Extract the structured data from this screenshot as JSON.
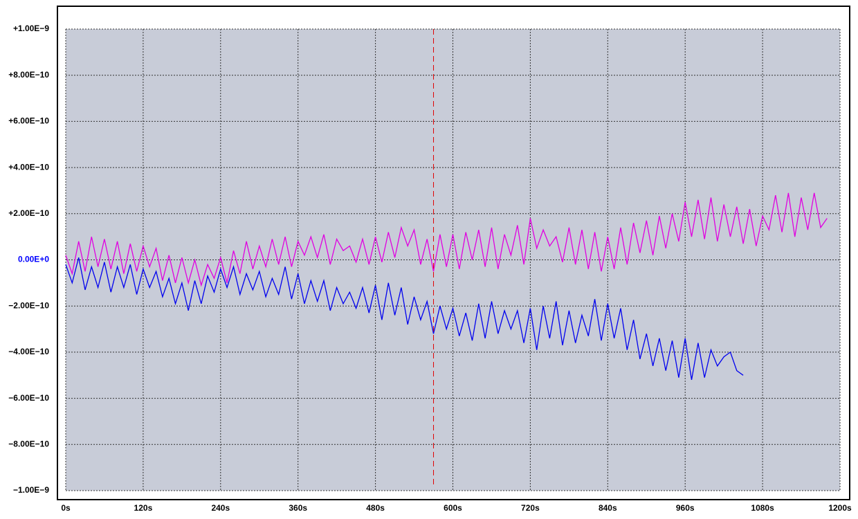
{
  "chart_data": {
    "type": "line",
    "xlim": [
      0,
      1200
    ],
    "xticks": [
      {
        "value": 0,
        "label": "0s"
      },
      {
        "value": 120,
        "label": "120s"
      },
      {
        "value": 240,
        "label": "240s"
      },
      {
        "value": 360,
        "label": "360s"
      },
      {
        "value": 480,
        "label": "480s"
      },
      {
        "value": 600,
        "label": "600s"
      },
      {
        "value": 720,
        "label": "720s"
      },
      {
        "value": 840,
        "label": "840s"
      },
      {
        "value": 960,
        "label": "960s"
      },
      {
        "value": 1080,
        "label": "1080s"
      },
      {
        "value": 1200,
        "label": "1200s"
      }
    ],
    "ylim": [
      -1e-09,
      1e-09
    ],
    "yticks": [
      {
        "value": 1e-09,
        "label": "+1.00E−9"
      },
      {
        "value": 8e-10,
        "label": "+8.00E−10"
      },
      {
        "value": 6e-10,
        "label": "+6.00E−10"
      },
      {
        "value": 4e-10,
        "label": "+4.00E−10"
      },
      {
        "value": 2e-10,
        "label": "+2.00E−10"
      },
      {
        "value": 0,
        "label": "0.00E+0"
      },
      {
        "value": -2e-10,
        "label": "−2.00E−10"
      },
      {
        "value": -4e-10,
        "label": "−4.00E−10"
      },
      {
        "value": -6e-10,
        "label": "−6.00E−10"
      },
      {
        "value": -8e-10,
        "label": "−8.00E−10"
      },
      {
        "value": -1e-09,
        "label": "−1.00E−9"
      }
    ],
    "zero_tick_color": "#0000ff",
    "grid": true,
    "background": "#c8ccd8",
    "marker_x": 570,
    "marker_color": "#e00000",
    "series": [
      {
        "color": "#e000e0",
        "x": [
          0,
          10,
          20,
          30,
          40,
          50,
          60,
          70,
          80,
          90,
          100,
          110,
          120,
          130,
          140,
          150,
          160,
          170,
          180,
          190,
          200,
          210,
          220,
          230,
          240,
          250,
          260,
          270,
          280,
          290,
          300,
          310,
          320,
          330,
          340,
          350,
          360,
          370,
          380,
          390,
          400,
          410,
          420,
          430,
          440,
          450,
          460,
          470,
          480,
          490,
          500,
          510,
          520,
          530,
          540,
          550,
          560,
          570,
          580,
          590,
          600,
          610,
          620,
          630,
          640,
          650,
          660,
          670,
          680,
          690,
          700,
          710,
          720,
          730,
          740,
          750,
          760,
          770,
          780,
          790,
          800,
          810,
          820,
          830,
          840,
          850,
          860,
          870,
          880,
          890,
          900,
          910,
          920,
          930,
          940,
          950,
          960,
          970,
          980,
          990,
          1000,
          1010,
          1020,
          1030,
          1040,
          1050,
          1060,
          1070,
          1080,
          1090,
          1100,
          1110,
          1120,
          1130,
          1140,
          1150,
          1160,
          1170,
          1180
        ],
        "values": [
          2e-11,
          -6e-11,
          8e-11,
          -5e-11,
          1e-10,
          -3e-11,
          9e-11,
          -4e-11,
          8e-11,
          -6e-11,
          7e-11,
          -5e-11,
          6e-11,
          -3e-11,
          5e-11,
          -9e-11,
          2e-11,
          -1e-10,
          1e-11,
          -1e-10,
          0.0,
          -1.1e-10,
          -2e-11,
          -8e-11,
          1e-11,
          -1e-10,
          4e-11,
          -6e-11,
          8e-11,
          -4e-11,
          6e-11,
          -3e-11,
          9e-11,
          -2e-11,
          1e-10,
          -3e-11,
          8e-11,
          2e-11,
          1e-10,
          1e-11,
          1.1e-10,
          -2e-11,
          9e-11,
          4e-11,
          6e-11,
          -1e-11,
          9e-11,
          -2e-11,
          1e-10,
          -1e-11,
          1.2e-10,
          1e-11,
          1.4e-10,
          6e-11,
          1.3e-10,
          -2e-11,
          9e-11,
          -5e-11,
          1.1e-10,
          -3e-11,
          1.1e-10,
          -4e-11,
          1.2e-10,
          0.0,
          1.3e-10,
          -3e-11,
          1.4e-10,
          -4e-11,
          1.1e-10,
          2e-11,
          1.5e-10,
          -2e-11,
          1.8e-10,
          5e-11,
          1.3e-10,
          6e-11,
          1e-10,
          -1e-11,
          1.4e-10,
          -2e-11,
          1.3e-10,
          -4e-11,
          1.2e-10,
          -5e-11,
          1e-10,
          -4e-11,
          1.4e-10,
          -2e-11,
          1.6e-10,
          3e-11,
          1.7e-10,
          2e-11,
          1.9e-10,
          5e-11,
          2e-10,
          8e-11,
          2.5e-10,
          1e-10,
          2.6e-10,
          9e-11,
          2.7e-10,
          8e-11,
          2.4e-10,
          1e-10,
          2.3e-10,
          7e-11,
          2.2e-10,
          6e-11,
          1.9e-10,
          1.3e-10,
          2.8e-10,
          1.2e-10,
          2.9e-10,
          1e-10,
          2.7e-10,
          1.3e-10,
          2.9e-10,
          1.4e-10,
          1.8e-10
        ]
      },
      {
        "color": "#0000ee",
        "x": [
          0,
          10,
          20,
          30,
          40,
          50,
          60,
          70,
          80,
          90,
          100,
          110,
          120,
          130,
          140,
          150,
          160,
          170,
          180,
          190,
          200,
          210,
          220,
          230,
          240,
          250,
          260,
          270,
          280,
          290,
          300,
          310,
          320,
          330,
          340,
          350,
          360,
          370,
          380,
          390,
          400,
          410,
          420,
          430,
          440,
          450,
          460,
          470,
          480,
          490,
          500,
          510,
          520,
          530,
          540,
          550,
          560,
          570,
          580,
          590,
          600,
          610,
          620,
          630,
          640,
          650,
          660,
          670,
          680,
          690,
          700,
          710,
          720,
          730,
          740,
          750,
          760,
          770,
          780,
          790,
          800,
          810,
          820,
          830,
          840,
          850,
          860,
          870,
          880,
          890,
          900,
          910,
          920,
          930,
          940,
          950,
          960,
          970,
          980,
          990,
          1000,
          1010,
          1020,
          1030,
          1040,
          1050
        ],
        "values": [
          -2e-11,
          -1e-10,
          1e-11,
          -1.3e-10,
          -3e-11,
          -1.2e-10,
          -1e-11,
          -1.4e-10,
          -3e-11,
          -1.2e-10,
          -2e-11,
          -1.5e-10,
          -4e-11,
          -1.2e-10,
          -5e-11,
          -1.6e-10,
          -8e-11,
          -1.9e-10,
          -1e-10,
          -2.2e-10,
          -9e-11,
          -1.9e-10,
          -7e-11,
          -1.4e-10,
          -4e-11,
          -1.2e-10,
          -3e-11,
          -1.5e-10,
          -6e-11,
          -1.3e-10,
          -5e-11,
          -1.6e-10,
          -8e-11,
          -1.5e-10,
          -3e-11,
          -1.7e-10,
          -6e-11,
          -1.9e-10,
          -9e-11,
          -1.8e-10,
          -9e-11,
          -2.2e-10,
          -1.2e-10,
          -1.9e-10,
          -1.4e-10,
          -2.1e-10,
          -1.2e-10,
          -2.3e-10,
          -1.1e-10,
          -2.6e-10,
          -1e-10,
          -2.4e-10,
          -1.2e-10,
          -2.8e-10,
          -1.6e-10,
          -2.6e-10,
          -1.8e-10,
          -3.2e-10,
          -2e-10,
          -3e-10,
          -2.1e-10,
          -3.3e-10,
          -2.3e-10,
          -3.5e-10,
          -1.9e-10,
          -3.4e-10,
          -1.8e-10,
          -3.2e-10,
          -2.2e-10,
          -3e-10,
          -2.2e-10,
          -3.6e-10,
          -2.1e-10,
          -3.9e-10,
          -2e-10,
          -3.4e-10,
          -1.8e-10,
          -3.7e-10,
          -2.2e-10,
          -3.6e-10,
          -2.4e-10,
          -3.3e-10,
          -1.7e-10,
          -3.5e-10,
          -1.9e-10,
          -3.4e-10,
          -2.1e-10,
          -3.9e-10,
          -2.6e-10,
          -4.3e-10,
          -3.2e-10,
          -4.6e-10,
          -3.4e-10,
          -4.8e-10,
          -3.5e-10,
          -5.1e-10,
          -3.4e-10,
          -5.2e-10,
          -3.6e-10,
          -5.1e-10,
          -3.9e-10,
          -4.6e-10,
          -4.2e-10,
          -4e-10,
          -4.8e-10,
          -5e-10
        ]
      }
    ]
  }
}
